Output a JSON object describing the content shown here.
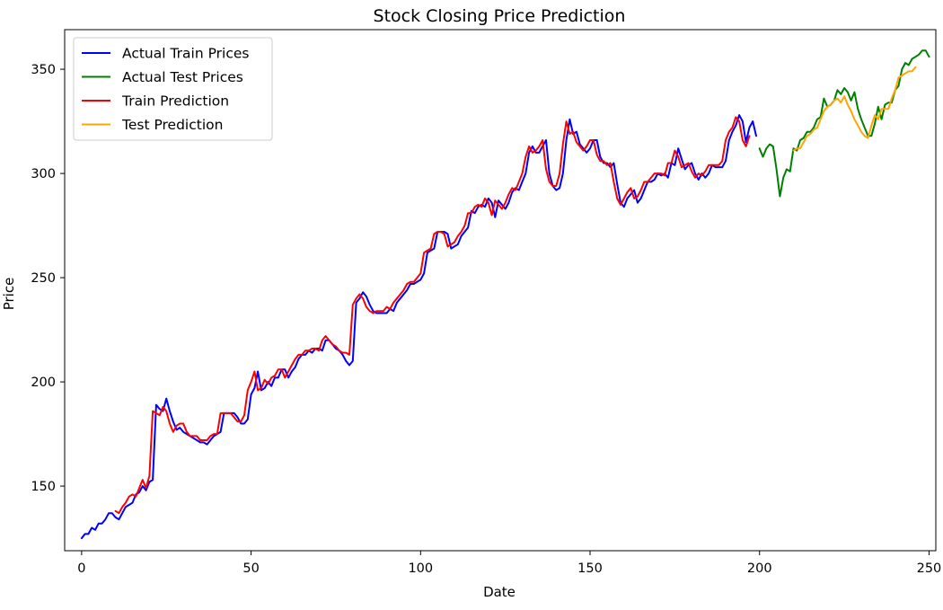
{
  "chart_data": {
    "type": "line",
    "title": "Stock Closing Price Prediction",
    "xlabel": "Date",
    "ylabel": "Price",
    "xlim": [
      -5,
      252
    ],
    "ylim": [
      119,
      369
    ],
    "x_ticks": [
      0,
      50,
      100,
      150,
      200,
      250
    ],
    "y_ticks": [
      150,
      200,
      250,
      300,
      350
    ],
    "grid": false,
    "legend_position": "upper-left",
    "series": [
      {
        "name": "Actual Train Prices",
        "color": "#0000ff",
        "x_start": 0,
        "values": [
          125,
          127,
          127,
          130,
          129,
          132,
          132,
          134,
          137,
          137,
          135,
          134,
          137,
          140,
          141,
          142,
          146,
          147,
          150,
          148,
          152,
          153,
          189,
          187,
          186,
          192,
          186,
          181,
          177,
          178,
          176,
          175,
          174,
          173,
          172,
          171,
          171,
          170,
          172,
          174,
          175,
          176,
          185,
          185,
          185,
          185,
          183,
          180,
          180,
          182,
          194,
          197,
          205,
          196,
          197,
          200,
          198,
          202,
          202,
          206,
          206,
          202,
          205,
          207,
          211,
          213,
          213,
          215,
          214,
          216,
          216,
          215,
          220,
          220,
          218,
          216,
          215,
          213,
          210,
          208,
          210,
          238,
          240,
          243,
          241,
          237,
          234,
          233,
          233,
          233,
          233,
          235,
          234,
          238,
          240,
          242,
          244,
          247,
          247,
          248,
          249,
          252,
          262,
          263,
          264,
          272,
          272,
          272,
          271,
          264,
          265,
          266,
          270,
          272,
          274,
          282,
          281,
          284,
          285,
          284,
          288,
          286,
          279,
          287,
          285,
          283,
          286,
          291,
          293,
          292,
          296,
          300,
          310,
          313,
          310,
          310,
          313,
          316,
          300,
          294,
          292,
          293,
          300,
          316,
          326,
          319,
          320,
          314,
          312,
          310,
          312,
          316,
          316,
          308,
          305,
          305,
          303,
          305,
          295,
          286,
          284,
          288,
          290,
          292,
          286,
          288,
          292,
          296,
          296,
          297,
          300,
          299,
          300,
          298,
          305,
          304,
          312,
          307,
          302,
          304,
          305,
          300,
          297,
          300,
          298,
          300,
          304,
          303,
          303,
          303,
          306,
          316,
          320,
          323,
          328,
          325,
          315,
          322,
          325,
          318
        ]
      },
      {
        "name": "Actual Test Prices",
        "color": "#008000",
        "x_start": 200,
        "values": [
          312,
          308,
          312,
          314,
          313,
          302,
          289,
          298,
          302,
          301,
          312,
          311,
          316,
          317,
          320,
          320,
          322,
          326,
          327,
          336,
          332,
          333,
          335,
          340,
          338,
          341,
          339,
          335,
          339,
          331,
          326,
          322,
          318,
          318,
          324,
          332,
          326,
          333,
          334,
          334,
          340,
          342,
          350,
          353,
          352,
          355,
          356,
          357,
          359,
          359,
          356
        ]
      },
      {
        "name": "Train Prediction",
        "color": "#ff0000",
        "x_start": 10,
        "values": [
          138,
          137,
          140,
          142,
          145,
          146,
          145,
          149,
          153,
          149,
          155,
          186,
          185,
          184,
          188,
          186,
          180,
          176,
          179,
          180,
          180,
          176,
          174,
          174,
          174,
          172,
          172,
          172,
          174,
          175,
          175,
          185,
          185,
          185,
          185,
          183,
          181,
          181,
          184,
          196,
          200,
          205,
          196,
          197,
          201,
          199,
          202,
          203,
          206,
          206,
          202,
          205,
          208,
          211,
          213,
          213,
          215,
          215,
          216,
          216,
          215,
          220,
          222,
          220,
          218,
          217,
          215,
          214,
          214,
          213,
          237,
          240,
          242,
          240,
          236,
          234,
          233,
          234,
          234,
          234,
          236,
          235,
          238,
          240,
          242,
          244,
          247,
          248,
          248,
          250,
          252,
          262,
          263,
          264,
          271,
          272,
          272,
          271,
          265,
          266,
          267,
          270,
          272,
          275,
          281,
          281,
          284,
          285,
          284,
          288,
          286,
          280,
          287,
          285,
          283,
          286,
          290,
          293,
          292,
          296,
          300,
          308,
          313,
          310,
          311,
          313,
          316,
          302,
          296,
          294,
          294,
          300,
          314,
          325,
          319,
          320,
          315,
          313,
          311,
          313,
          316,
          316,
          309,
          306,
          306,
          304,
          305,
          296,
          288,
          285,
          288,
          291,
          293,
          288,
          289,
          292,
          296,
          296,
          298,
          300,
          300,
          300,
          299,
          305,
          305,
          311,
          308,
          303,
          304,
          305,
          301,
          298,
          300,
          299,
          301,
          304,
          304,
          304,
          304,
          306,
          316,
          320,
          322,
          327,
          325,
          316,
          313,
          318
        ]
      },
      {
        "name": "Test Prediction",
        "color": "#ffa500",
        "x_start": 210,
        "values": [
          311,
          312,
          312,
          315,
          318,
          319,
          321,
          322,
          326,
          330,
          332,
          333,
          335,
          336,
          334,
          337,
          333,
          330,
          326,
          323,
          320,
          318,
          317,
          323,
          328,
          326,
          331,
          331,
          331,
          336,
          340,
          346,
          347,
          348,
          349,
          349,
          351
        ]
      }
    ]
  }
}
